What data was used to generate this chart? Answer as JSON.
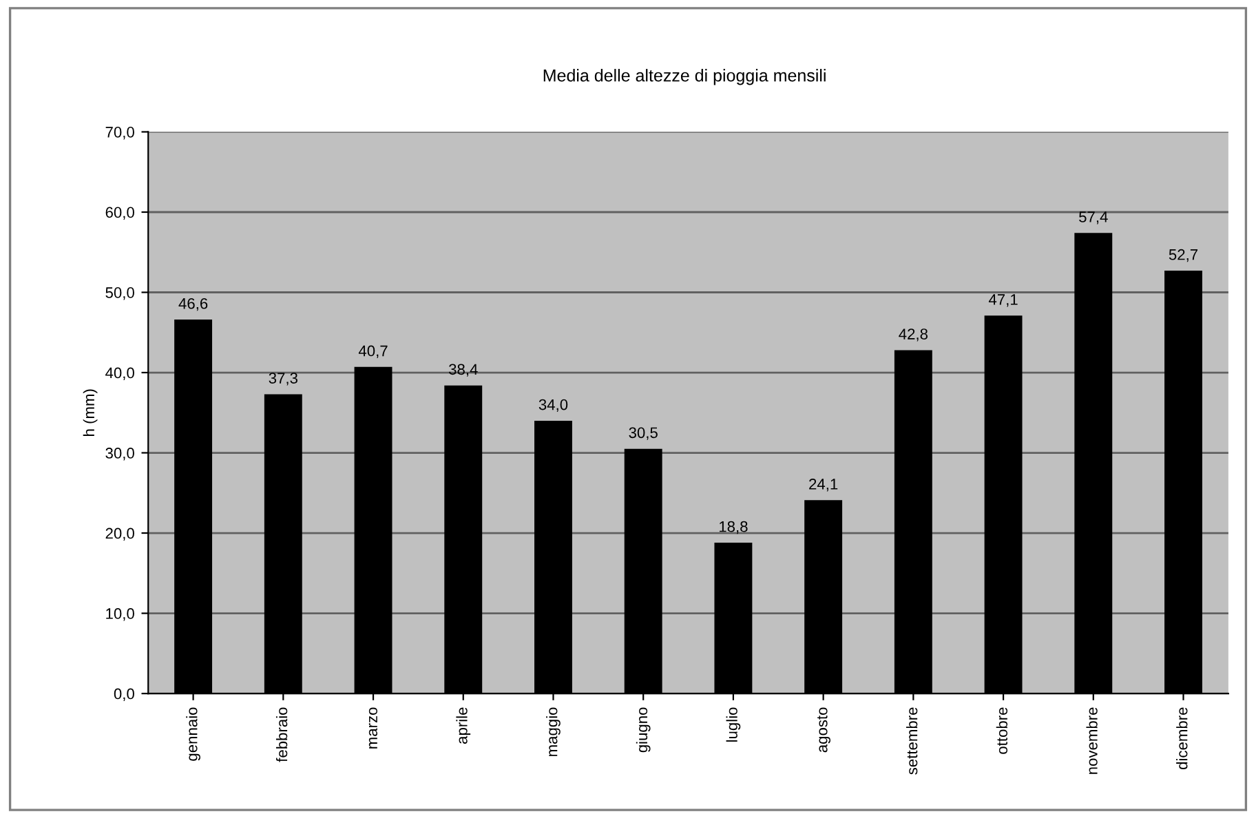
{
  "chart_data": {
    "type": "bar",
    "title": "Media delle altezze di pioggia mensili",
    "ylabel": "h (mm)",
    "categories": [
      "gennaio",
      "febbraio",
      "marzo",
      "aprile",
      "maggio",
      "giugno",
      "luglio",
      "agosto",
      "settembre",
      "ottobre",
      "novembre",
      "dicembre"
    ],
    "values": [
      46.6,
      37.3,
      40.7,
      38.4,
      34.0,
      30.5,
      18.8,
      24.1,
      42.8,
      47.1,
      57.4,
      52.7
    ],
    "value_labels": [
      "46,6",
      "37,3",
      "40,7",
      "38,4",
      "34,0",
      "30,5",
      "18,8",
      "24,1",
      "42,8",
      "47,1",
      "57,4",
      "52,7"
    ],
    "color": "#000000",
    "ylim": [
      0,
      70
    ],
    "yticks": [
      {
        "value": 0,
        "label": "0,0"
      },
      {
        "value": 10,
        "label": "10,0"
      },
      {
        "value": 20,
        "label": "20,0"
      },
      {
        "value": 30,
        "label": "30,0"
      },
      {
        "value": 40,
        "label": "40,0"
      },
      {
        "value": 50,
        "label": "50,0"
      },
      {
        "value": 60,
        "label": "60,0"
      },
      {
        "value": 70,
        "label": "70,0"
      }
    ],
    "grid": "y",
    "legend": false
  }
}
